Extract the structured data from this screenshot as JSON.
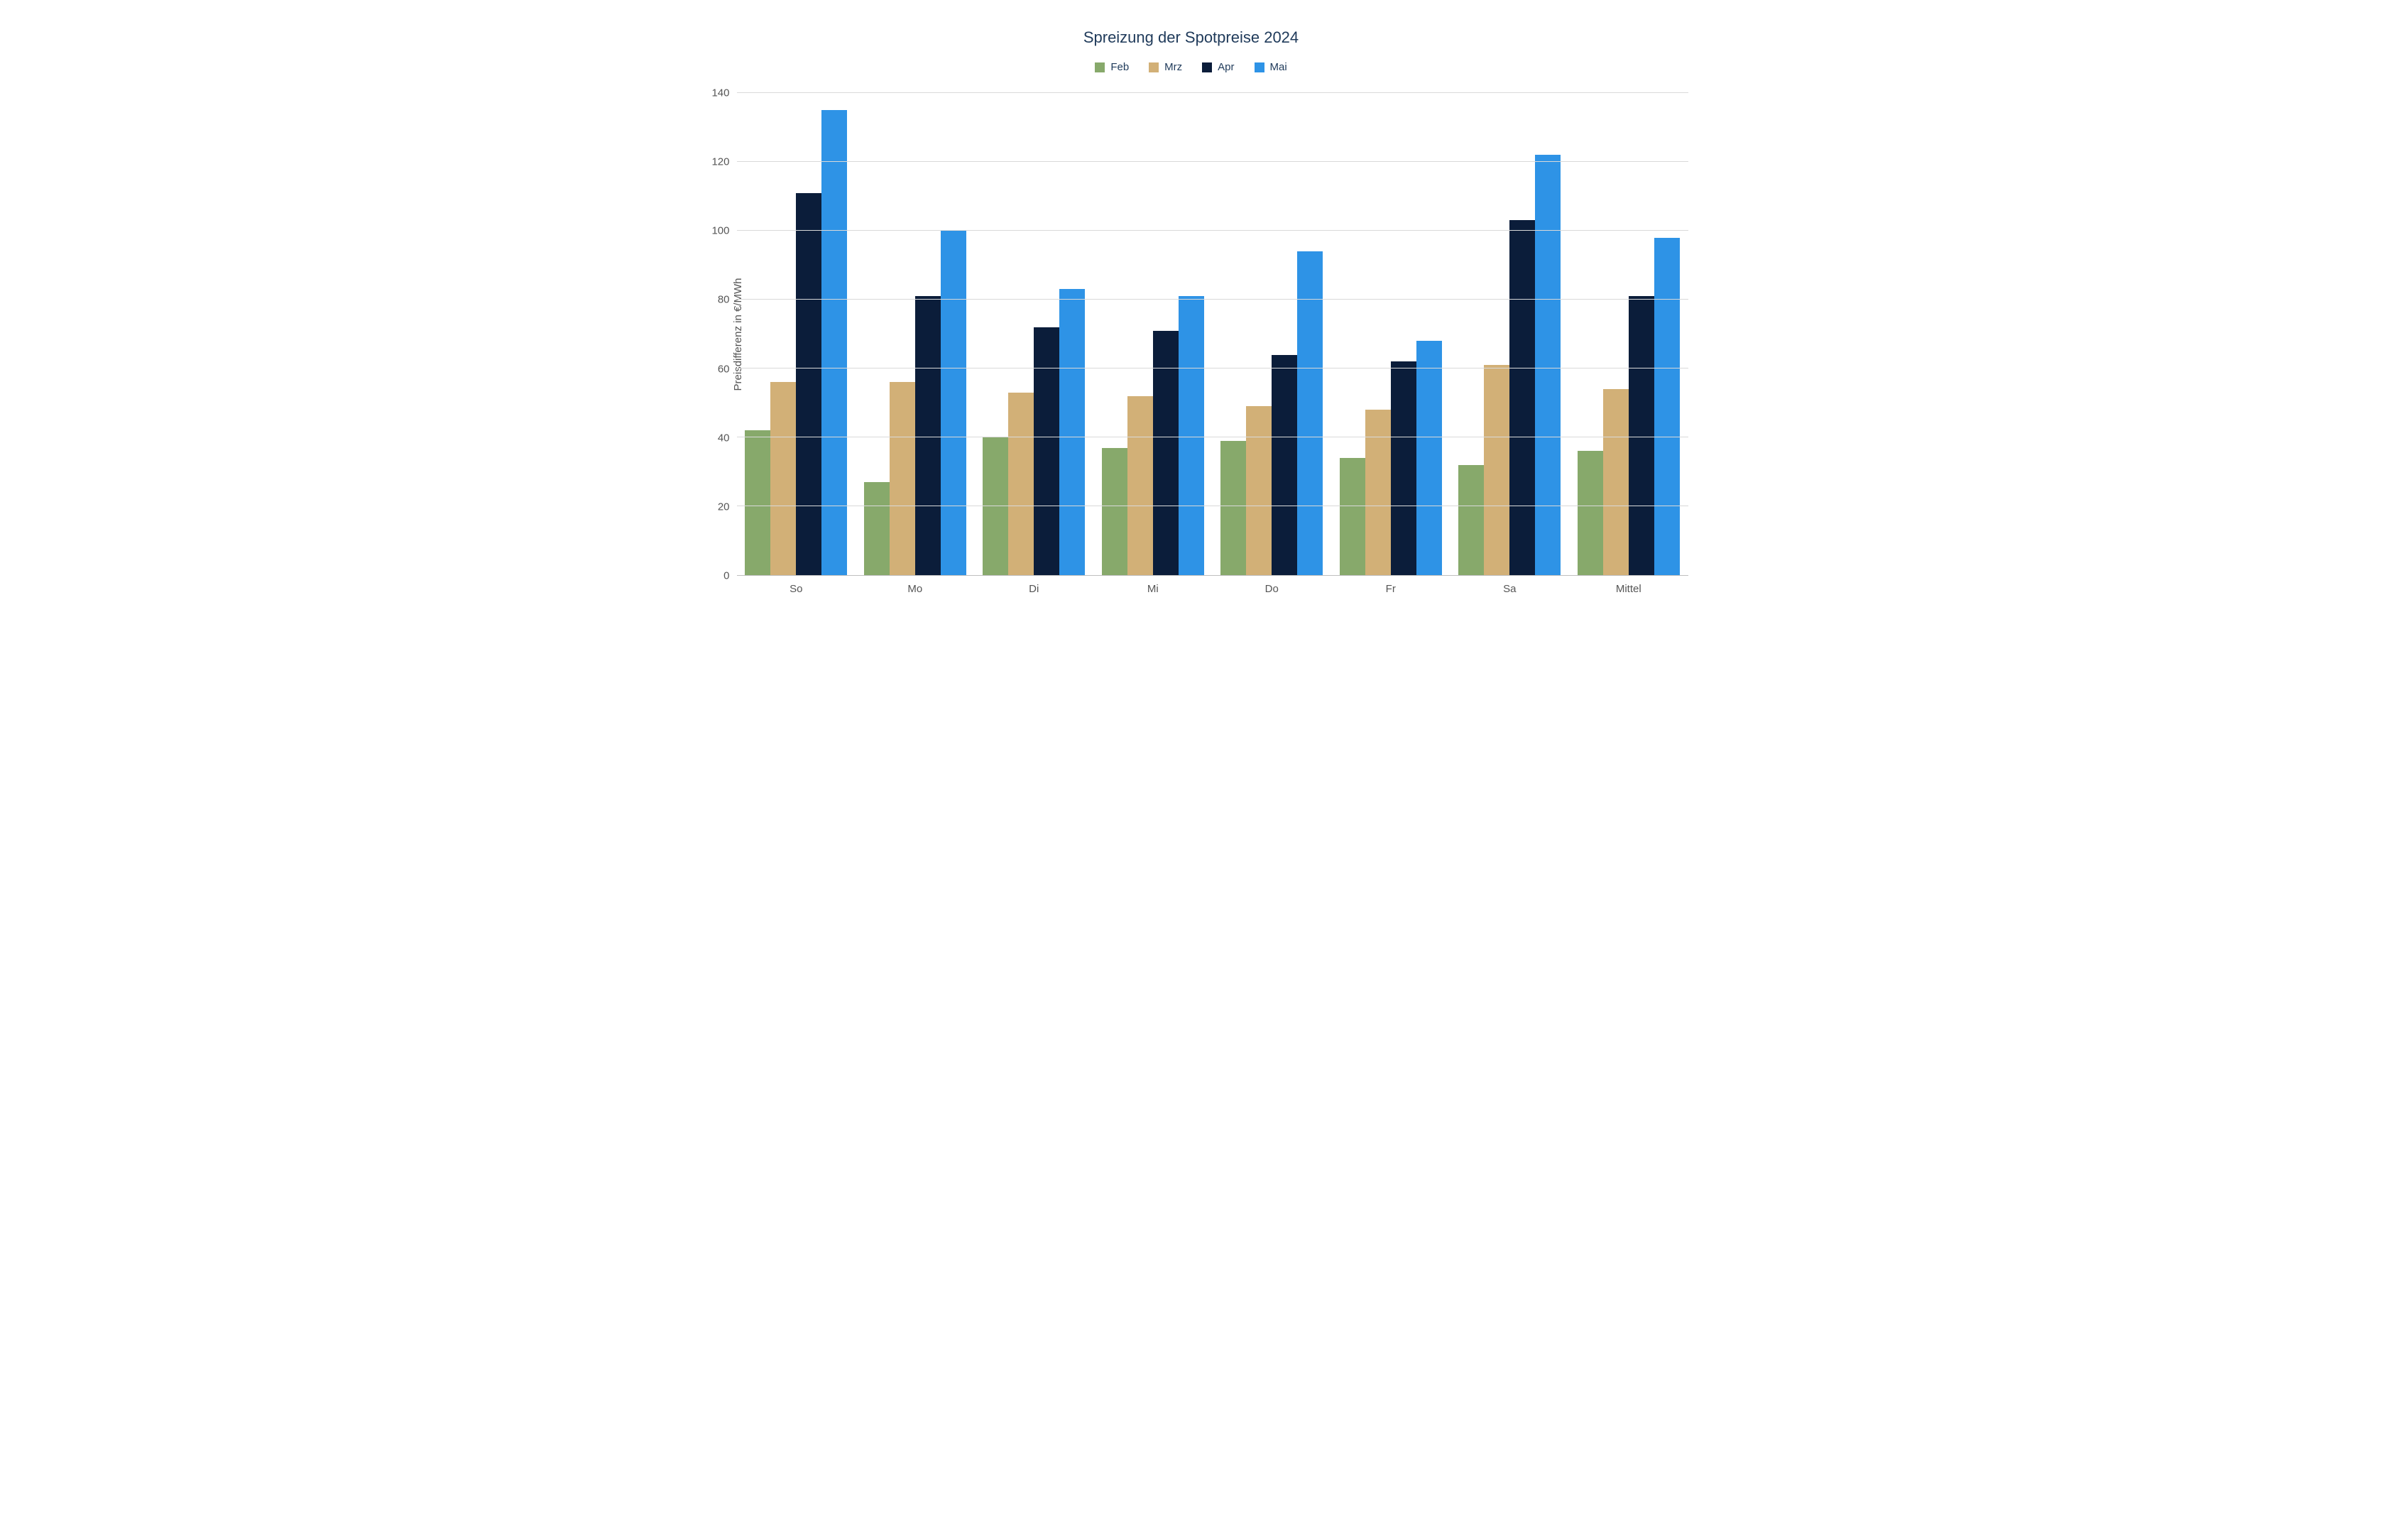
{
  "chart": {
    "type": "bar",
    "title": "Spreizung der Spotpreise 2024",
    "title_fontsize": 22,
    "title_color": "#1f3a5a",
    "ylabel": "Preisdifferenz in €/MWh",
    "label_fontsize": 15,
    "label_color": "#555555",
    "ylim": [
      0,
      140
    ],
    "ytick_step": 20,
    "yticks": [
      0,
      20,
      40,
      60,
      80,
      100,
      120,
      140
    ],
    "background_color": "#ffffff",
    "grid_color": "#d9d9d9",
    "axis_color": "#bfbfbf",
    "bar_width": 0.22,
    "categories": [
      "So",
      "Mo",
      "Di",
      "Mi",
      "Do",
      "Fr",
      "Sa",
      "Mittel"
    ],
    "series": [
      {
        "name": "Feb",
        "color": "#87a96b",
        "values": [
          42,
          27,
          40,
          37,
          39,
          34,
          32,
          36
        ]
      },
      {
        "name": "Mrz",
        "color": "#d2b077",
        "values": [
          56,
          56,
          53,
          52,
          49,
          48,
          61,
          54
        ]
      },
      {
        "name": "Apr",
        "color": "#0b1d3a",
        "values": [
          111,
          81,
          72,
          71,
          64,
          62,
          103,
          81
        ]
      },
      {
        "name": "Mai",
        "color": "#2e93e6",
        "values": [
          135,
          100,
          83,
          81,
          94,
          68,
          122,
          98
        ]
      }
    ],
    "legend_position": "top",
    "tick_fontsize": 15,
    "tick_color": "#555555"
  }
}
